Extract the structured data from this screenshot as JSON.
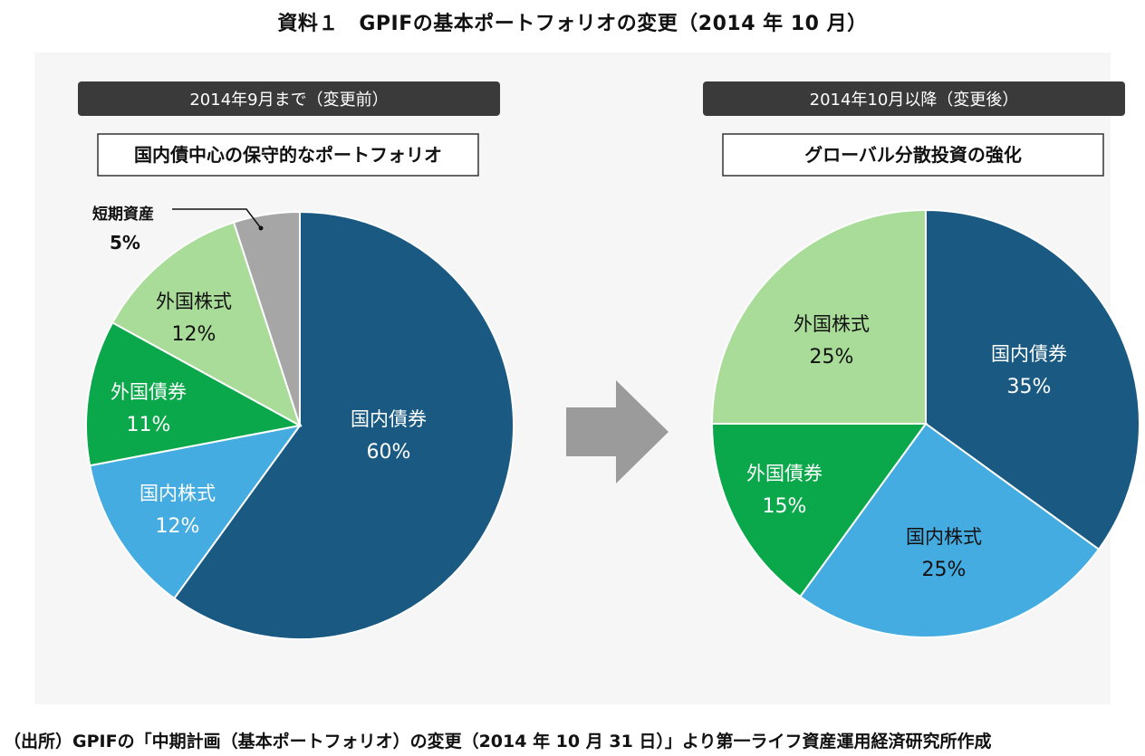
{
  "title": "資料１　GPIFの基本ポートフォリオの変更（2014 年 10 月）",
  "source": "（出所）GPIFの「中期計画（基本ポートフォリオ）の変更（2014 年 10 月 31 日）」より第一ライフ資産運用経済研究所作成",
  "colors": {
    "domestic_bonds": "#1a5a82",
    "domestic_stocks": "#44ace0",
    "foreign_bonds": "#0aa84a",
    "foreign_stocks": "#a9dc98",
    "short_term": "#a6a6a6",
    "header_bg": "#3a3a3a",
    "arrow": "#9b9b9b"
  },
  "chart_data": [
    {
      "type": "pie",
      "header": "2014年9月まで（変更前）",
      "subtitle": "国内債中心の保守的なポートフォリオ",
      "slices": [
        {
          "label": "国内債券",
          "value": 60,
          "pct": "60%",
          "color": "#1a5a82",
          "text_color": "#ffffff"
        },
        {
          "label": "国内株式",
          "value": 12,
          "pct": "12%",
          "color": "#44ace0",
          "text_color": "#ffffff"
        },
        {
          "label": "外国債券",
          "value": 11,
          "pct": "11%",
          "color": "#0aa84a",
          "text_color": "#ffffff"
        },
        {
          "label": "外国株式",
          "value": 12,
          "pct": "12%",
          "color": "#a9dc98",
          "text_color": "#111111"
        },
        {
          "label": "短期資産",
          "value": 5,
          "pct": "5%",
          "color": "#a6a6a6",
          "text_color": "#111111",
          "callout": true
        }
      ]
    },
    {
      "type": "pie",
      "header": "2014年10月以降（変更後）",
      "subtitle": "グローバル分散投資の強化",
      "slices": [
        {
          "label": "国内債券",
          "value": 35,
          "pct": "35%",
          "color": "#1a5a82",
          "text_color": "#ffffff"
        },
        {
          "label": "国内株式",
          "value": 25,
          "pct": "25%",
          "color": "#44ace0",
          "text_color": "#111111"
        },
        {
          "label": "外国債券",
          "value": 15,
          "pct": "15%",
          "color": "#0aa84a",
          "text_color": "#ffffff"
        },
        {
          "label": "外国株式",
          "value": 25,
          "pct": "25%",
          "color": "#a9dc98",
          "text_color": "#111111"
        }
      ]
    }
  ]
}
